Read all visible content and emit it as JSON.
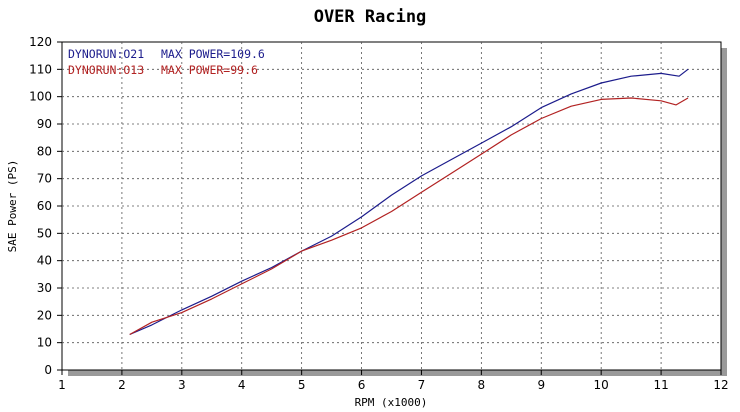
{
  "chart_data": {
    "type": "line",
    "title": "OVER Racing",
    "xlabel": "RPM (x1000)",
    "ylabel": "SAE Power (PS)",
    "xlim": [
      1,
      12
    ],
    "ylim": [
      0,
      120
    ],
    "x_ticks": [
      1,
      2,
      3,
      4,
      5,
      6,
      7,
      8,
      9,
      10,
      11,
      12
    ],
    "y_ticks": [
      0,
      10,
      20,
      30,
      40,
      50,
      60,
      70,
      80,
      90,
      100,
      110,
      120
    ],
    "grid": true,
    "grid_style": "dashed",
    "legend_position": "top-left",
    "series": [
      {
        "name": "DYNORUN:O21",
        "label": "MAX POWER=109.6",
        "color": "#1c1c8c",
        "points": [
          [
            2.13,
            13
          ],
          [
            2.5,
            16.5
          ],
          [
            3.0,
            22
          ],
          [
            3.5,
            27
          ],
          [
            4.0,
            32.5
          ],
          [
            4.5,
            37.5
          ],
          [
            5.0,
            43.5
          ],
          [
            5.5,
            49
          ],
          [
            6.0,
            56
          ],
          [
            6.5,
            64
          ],
          [
            7.0,
            71
          ],
          [
            7.5,
            77
          ],
          [
            8.0,
            83
          ],
          [
            8.5,
            89
          ],
          [
            9.0,
            96
          ],
          [
            9.5,
            101
          ],
          [
            10.0,
            105
          ],
          [
            10.5,
            107.5
          ],
          [
            11.0,
            108.5
          ],
          [
            11.3,
            107.5
          ],
          [
            11.45,
            110
          ]
        ]
      },
      {
        "name": "DYNORUN:O13",
        "label": "MAX POWER=99.6",
        "color": "#b22222",
        "points": [
          [
            2.13,
            13
          ],
          [
            2.5,
            17.5
          ],
          [
            3.0,
            21
          ],
          [
            3.5,
            26
          ],
          [
            4.0,
            31.5
          ],
          [
            4.5,
            37
          ],
          [
            5.0,
            43.5
          ],
          [
            5.5,
            47.5
          ],
          [
            6.0,
            52
          ],
          [
            6.5,
            58
          ],
          [
            7.0,
            65
          ],
          [
            7.5,
            72
          ],
          [
            8.0,
            79
          ],
          [
            8.5,
            86
          ],
          [
            9.0,
            92
          ],
          [
            9.5,
            96.5
          ],
          [
            10.0,
            99
          ],
          [
            10.5,
            99.5
          ],
          [
            11.0,
            98.5
          ],
          [
            11.25,
            97
          ],
          [
            11.45,
            99.5
          ]
        ]
      }
    ]
  }
}
